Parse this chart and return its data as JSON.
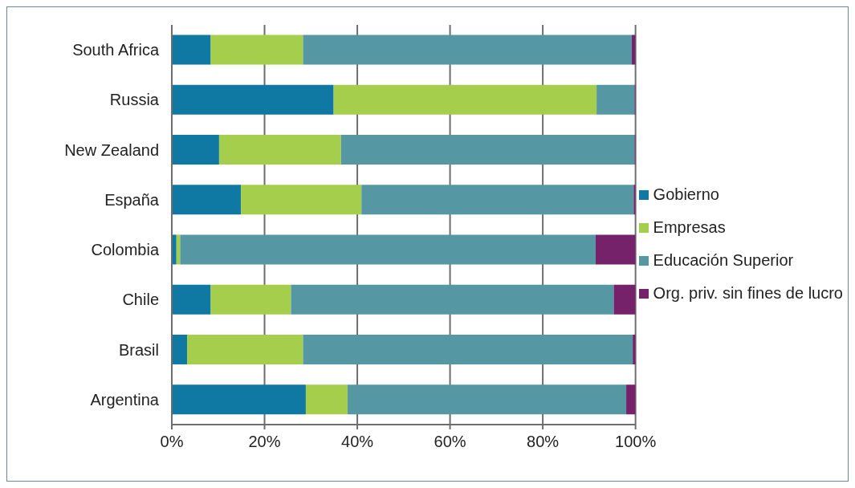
{
  "chart_data": {
    "type": "bar",
    "orientation": "horizontal",
    "stacked": true,
    "categories": [
      "South Africa",
      "Russia",
      "New Zealand",
      "España",
      "Colombia",
      "Chile",
      "Brasil",
      "Argentina"
    ],
    "series": [
      {
        "name": "Gobierno",
        "color": "#1079a3",
        "values": [
          8.4,
          34.9,
          10.2,
          14.9,
          1.0,
          8.4,
          3.3,
          28.9
        ]
      },
      {
        "name": "Empresas",
        "color": "#a6ce4d",
        "values": [
          19.9,
          56.7,
          26.3,
          26.0,
          0.8,
          17.3,
          25.0,
          9.0
        ]
      },
      {
        "name": "Educación Superior",
        "color": "#5598a3",
        "values": [
          70.9,
          8.2,
          63.3,
          58.7,
          89.6,
          69.6,
          71.1,
          60.1
        ]
      },
      {
        "name": "Org. priv. sin fines de lucro",
        "color": "#76226b",
        "values": [
          0.8,
          0.2,
          0.2,
          0.4,
          8.6,
          4.7,
          0.6,
          2.0
        ]
      }
    ],
    "xlim": [
      0,
      100
    ],
    "xticks": [
      {
        "value": 0,
        "label": "0%"
      },
      {
        "value": 20,
        "label": "20%"
      },
      {
        "value": 40,
        "label": "40%"
      },
      {
        "value": 60,
        "label": "60%"
      },
      {
        "value": 80,
        "label": "80%"
      },
      {
        "value": 100,
        "label": "100%"
      }
    ],
    "grid": "x",
    "legend": "right"
  }
}
